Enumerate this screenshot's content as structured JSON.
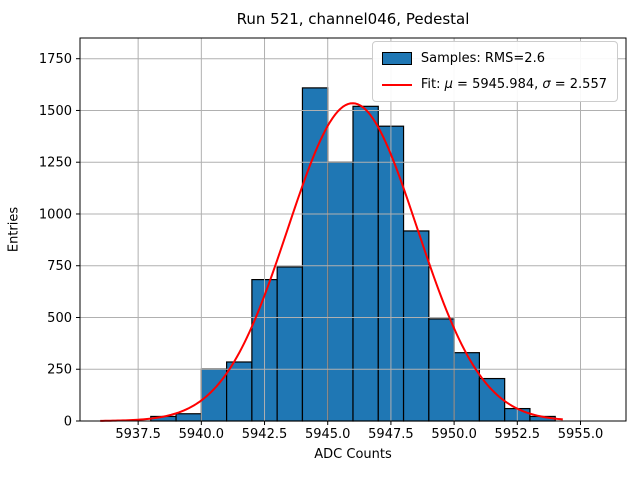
{
  "chart_data": {
    "type": "bar",
    "title": "Run 521, channel046, Pedestal",
    "xlabel": "ADC Counts",
    "ylabel": "Entries",
    "xlim": [
      5935.2,
      5956.8
    ],
    "ylim": [
      0,
      1850
    ],
    "xticks": [
      "5937.5",
      "5940.0",
      "5942.5",
      "5945.0",
      "5947.5",
      "5950.0",
      "5952.5",
      "5955.0"
    ],
    "yticks": [
      "0",
      "250",
      "500",
      "750",
      "1000",
      "1250",
      "1500",
      "1750"
    ],
    "grid": true,
    "legend_position": "upper right",
    "bin_edges": [
      5938,
      5939,
      5940,
      5941,
      5942,
      5943,
      5944,
      5945,
      5946,
      5947,
      5948,
      5949,
      5950,
      5951,
      5952,
      5953,
      5954
    ],
    "counts": [
      22,
      35,
      251,
      285,
      683,
      744,
      1609,
      1250,
      1520,
      1424,
      918,
      493,
      330,
      205,
      60,
      22
    ],
    "fit": {
      "mu": 5945.984,
      "sigma": 2.557,
      "amplitude": 1535,
      "x_range": [
        5936.0,
        5954.3
      ]
    },
    "legend": {
      "items": [
        {
          "swatch": "patch",
          "parts": [
            {
              "t": "Samples: RMS=2.6",
              "i": false
            }
          ]
        },
        {
          "swatch": "line",
          "parts": [
            {
              "t": "Fit: ",
              "i": false
            },
            {
              "t": "μ",
              "i": true
            },
            {
              "t": " = 5945.984, ",
              "i": false
            },
            {
              "t": "σ",
              "i": true
            },
            {
              "t": " = 2.557",
              "i": false
            }
          ]
        }
      ]
    },
    "colors": {
      "bar_fill": "#1f77b4",
      "bar_edge": "#000000",
      "fit_line": "#ff0000",
      "grid": "#b0b0b0",
      "spine": "#000000",
      "background": "#ffffff"
    }
  }
}
